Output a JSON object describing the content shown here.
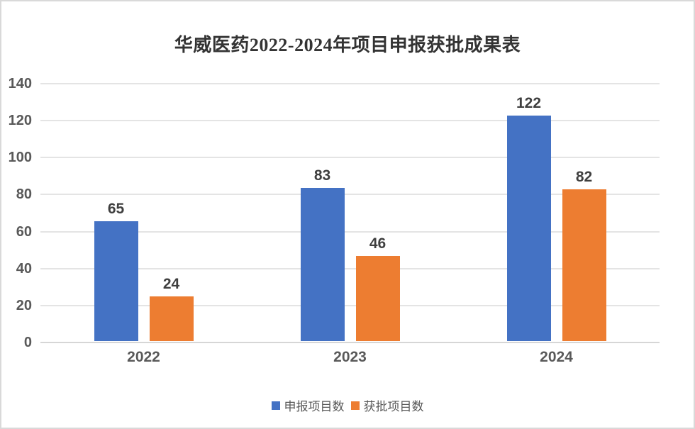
{
  "chart_data": {
    "type": "bar",
    "title": "华威医药2022-2024年项目申报获批成果表",
    "categories": [
      "2022",
      "2023",
      "2024"
    ],
    "series": [
      {
        "name": "申报项目数",
        "color": "#4472c4",
        "values": [
          65,
          83,
          122
        ]
      },
      {
        "name": "获批项目数",
        "color": "#ed7d31",
        "values": [
          24,
          46,
          82
        ]
      }
    ],
    "xlabel": "",
    "ylabel": "",
    "ylim": [
      0,
      140
    ],
    "ytick_step": 20,
    "ytick_labels": [
      "0",
      "20",
      "40",
      "60",
      "80",
      "100",
      "120",
      "140"
    ],
    "grid": true,
    "value_labels": true,
    "legend_position": "bottom",
    "colors": {
      "title_text": "#333333",
      "value_label_text": "#3f3f3f",
      "axis_tick_text": "#595959",
      "legend_text": "#595959",
      "gridline": "#e4e4e4",
      "axis_line": "#d6d6d6",
      "frame_border": "#d9d9d9",
      "background": "#ffffff"
    }
  }
}
